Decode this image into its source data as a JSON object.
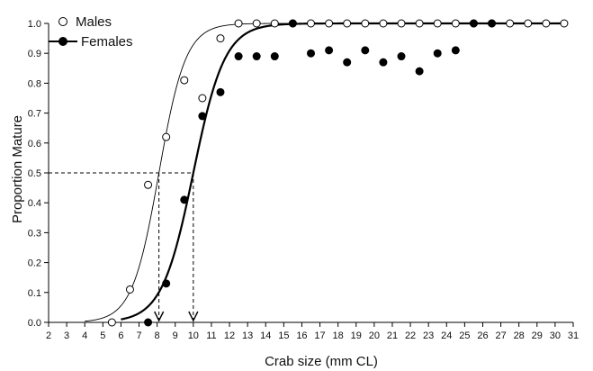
{
  "chart_data": {
    "type": "scatter",
    "title": "",
    "xlabel": "Crab size (mm CL)",
    "ylabel": "Proportion Mature",
    "xlim": [
      2,
      31
    ],
    "ylim": [
      0,
      1.0
    ],
    "xticks": [
      2,
      3,
      4,
      5,
      6,
      7,
      8,
      9,
      10,
      11,
      12,
      13,
      14,
      15,
      16,
      17,
      18,
      19,
      20,
      21,
      22,
      23,
      24,
      25,
      26,
      27,
      28,
      29,
      30,
      31
    ],
    "yticks": [
      "0.0",
      "0.1",
      "0.2",
      "0.3",
      "0.4",
      "0.5",
      "0.6",
      "0.7",
      "0.8",
      "0.9",
      "1.0"
    ],
    "grid": false,
    "legend_position": "top-left",
    "series": [
      {
        "name": "Males",
        "marker": "open-circle",
        "color": "#000000",
        "points": [
          [
            5.5,
            0.0
          ],
          [
            6.5,
            0.11
          ],
          [
            7.5,
            0.46
          ],
          [
            8.5,
            0.62
          ],
          [
            9.5,
            0.81
          ],
          [
            10.5,
            0.75
          ],
          [
            11.5,
            0.95
          ],
          [
            12.5,
            1.0
          ],
          [
            13.5,
            1.0
          ],
          [
            14.5,
            1.0
          ],
          [
            15.5,
            1.0
          ],
          [
            16.5,
            1.0
          ],
          [
            17.5,
            1.0
          ],
          [
            18.5,
            1.0
          ],
          [
            19.5,
            1.0
          ],
          [
            20.5,
            1.0
          ],
          [
            21.5,
            1.0
          ],
          [
            22.5,
            1.0
          ],
          [
            23.5,
            1.0
          ],
          [
            24.5,
            1.0
          ],
          [
            25.5,
            1.0
          ],
          [
            26.5,
            1.0
          ],
          [
            27.5,
            1.0
          ],
          [
            28.5,
            1.0
          ],
          [
            29.5,
            1.0
          ],
          [
            30.5,
            1.0
          ]
        ]
      },
      {
        "name": "Females",
        "marker": "filled-circle",
        "color": "#000000",
        "points": [
          [
            7.5,
            0.0
          ],
          [
            8.5,
            0.13
          ],
          [
            9.5,
            0.41
          ],
          [
            10.5,
            0.69
          ],
          [
            11.5,
            0.77
          ],
          [
            12.5,
            0.89
          ],
          [
            13.5,
            0.89
          ],
          [
            14.5,
            0.89
          ],
          [
            15.5,
            1.0
          ],
          [
            16.5,
            0.9
          ],
          [
            17.5,
            0.91
          ],
          [
            18.5,
            0.87
          ],
          [
            19.5,
            0.91
          ],
          [
            20.5,
            0.87
          ],
          [
            21.5,
            0.89
          ],
          [
            22.5,
            0.84
          ],
          [
            23.5,
            0.9
          ],
          [
            24.5,
            0.91
          ],
          [
            25.5,
            1.0
          ],
          [
            26.5,
            1.0
          ]
        ]
      }
    ],
    "curves": [
      {
        "series": "Males",
        "L50": 8.1,
        "slope": 1.35,
        "x_start": 4.0,
        "x_end": 30.5,
        "stroke_color": "#000000",
        "weight": "thin"
      },
      {
        "series": "Females",
        "L50": 10.0,
        "slope": 1.15,
        "x_start": 6.0,
        "x_end": 30.5,
        "stroke_color": "#000000",
        "weight": "thick"
      }
    ],
    "reference_lines": {
      "y": 0.5,
      "x_values": [
        8.1,
        10.0
      ],
      "style": "dashed",
      "arrows_at_x_axis": true
    }
  }
}
